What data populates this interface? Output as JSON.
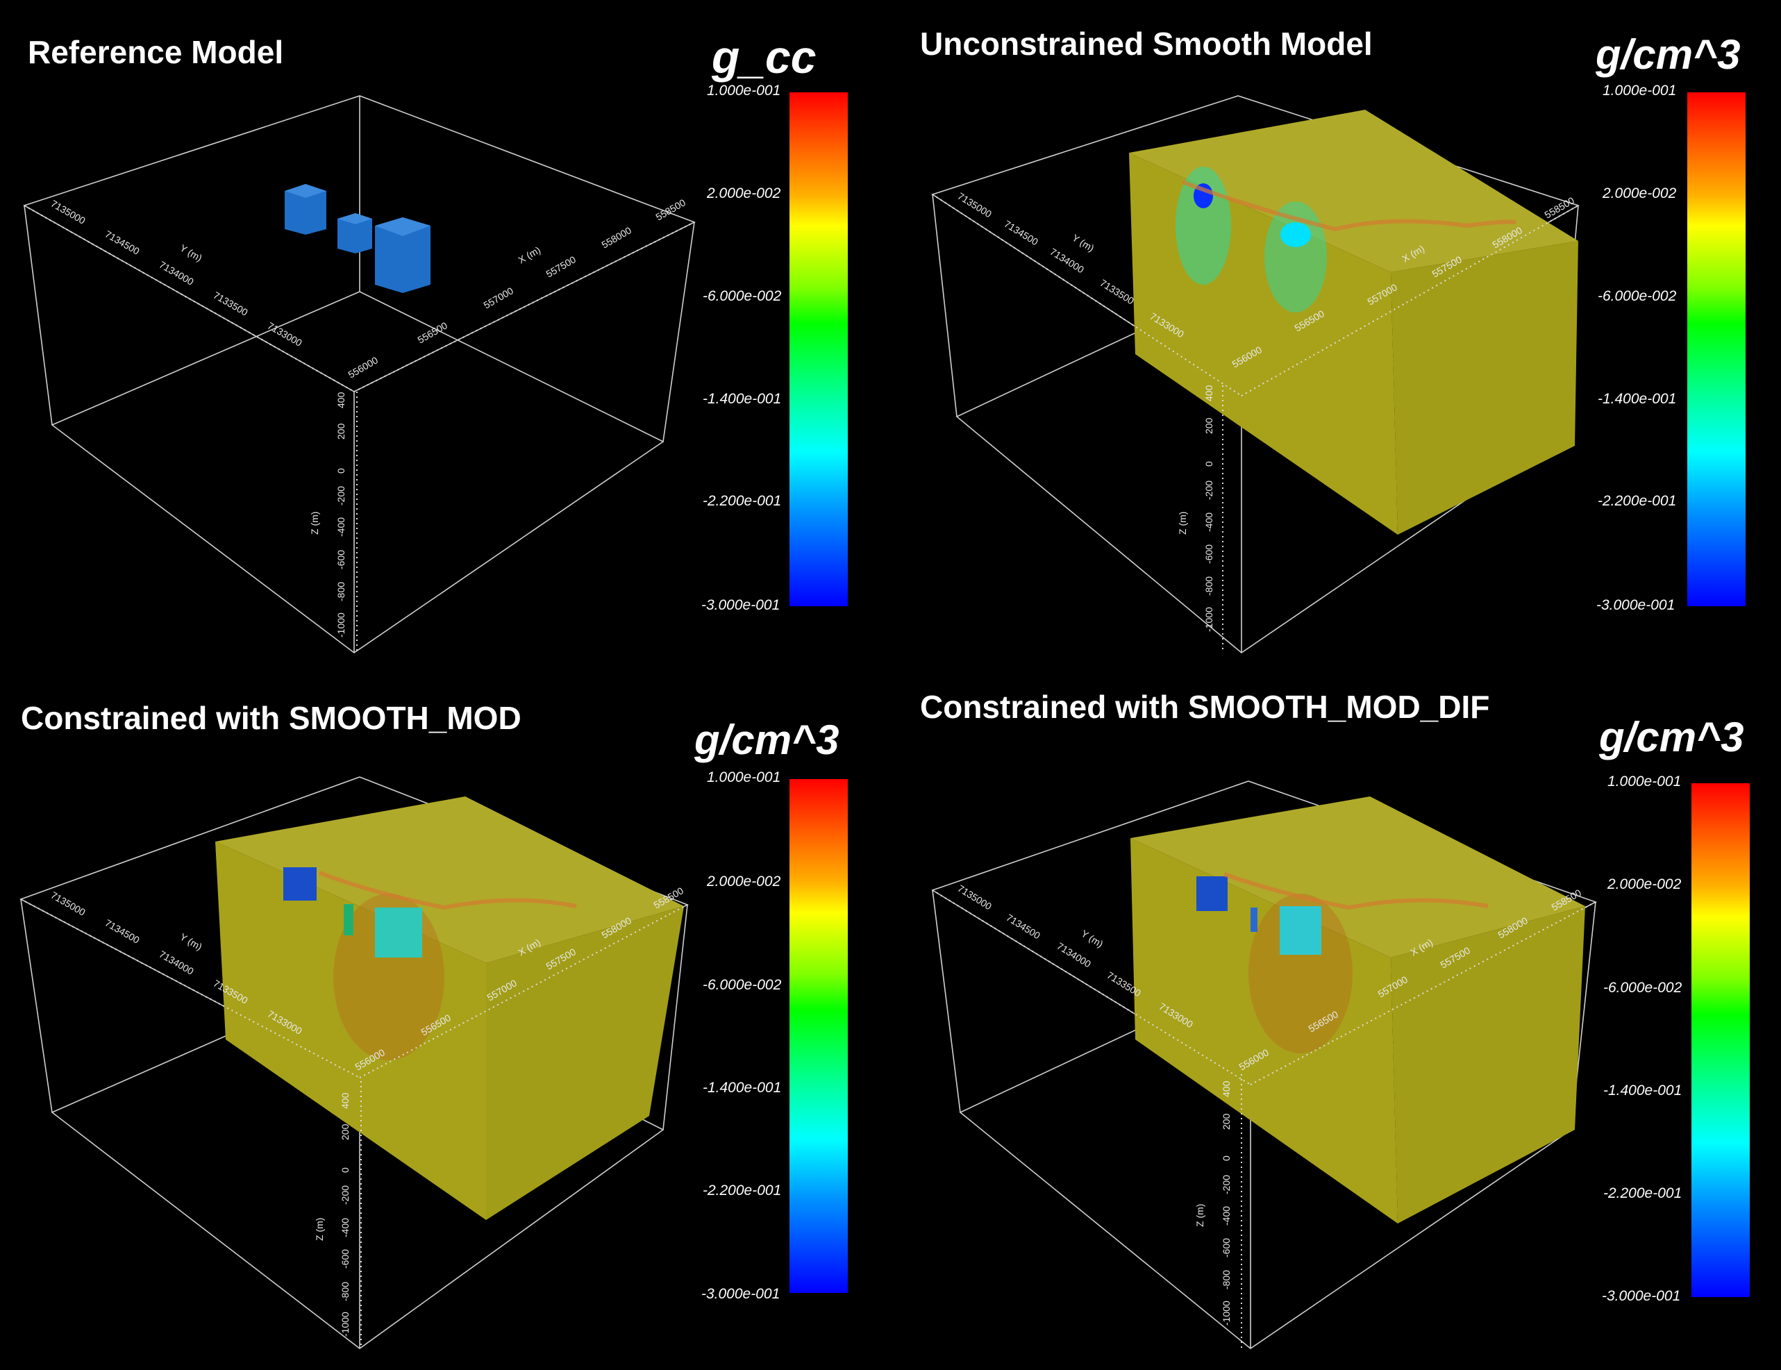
{
  "colormap_ticks": [
    "1.000e-001",
    "2.000e-002",
    "-6.000e-002",
    "-1.400e-001",
    "-2.200e-001",
    "-3.000e-001"
  ],
  "axis": {
    "y_title": "Y (m)",
    "x_title": "X (m)",
    "z_title": "Z (m)",
    "y_ticks": [
      "7135000",
      "7134500",
      "7134000",
      "7133500",
      "7133000"
    ],
    "x_ticks": [
      "556000",
      "556500",
      "557000",
      "557500",
      "558000",
      "558500"
    ],
    "z_ticks": [
      "400",
      "200",
      "0",
      "-200",
      "-400",
      "-600",
      "-800",
      "-1000"
    ]
  },
  "panels": [
    {
      "title": "Reference Model",
      "unit": "g_cc"
    },
    {
      "title": "Unconstrained Smooth Model",
      "unit": "g/cm^3"
    },
    {
      "title": "Constrained with SMOOTH_MOD",
      "unit": "g/cm^3"
    },
    {
      "title": "Constrained with SMOOTH_MOD_DIF",
      "unit": "g/cm^3"
    }
  ],
  "colors": {
    "background": "#000000",
    "model_fill": "#a6a21e",
    "colormap": [
      "#ff0000",
      "#ff8000",
      "#ffff00",
      "#00ff00",
      "#00ffff",
      "#0060ff",
      "#0000ff"
    ]
  }
}
